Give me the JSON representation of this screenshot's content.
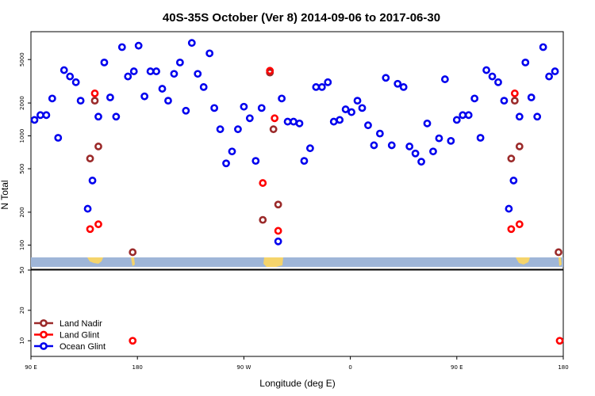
{
  "chart_data": {
    "type": "scatter",
    "title": "40S-35S October (Ver 8)   2014-09-06 to 2017-06-30",
    "xlabel": "Longitude (deg E)",
    "ylabel": "N Total",
    "x_ticks": [
      {
        "value": 90,
        "label": "90 E"
      },
      {
        "value": 180,
        "label": "180"
      },
      {
        "value": 270,
        "label": "90 W"
      },
      {
        "value": 360,
        "label": "0"
      },
      {
        "value": 450,
        "label": "90 E"
      },
      {
        "value": 540,
        "label": "180"
      }
    ],
    "xlim": [
      90,
      540
    ],
    "top_panel": {
      "scale": "log",
      "ylim": [
        60,
        9000
      ],
      "y_ticks": [
        {
          "value": 100,
          "label": "100"
        },
        {
          "value": 200,
          "label": "200"
        },
        {
          "value": 500,
          "label": "500"
        },
        {
          "value": 1000,
          "label": "1000"
        },
        {
          "value": 2000,
          "label": "2000"
        },
        {
          "value": 5000,
          "label": "5000"
        }
      ]
    },
    "bottom_panel": {
      "scale": "log",
      "ylim": [
        7,
        50
      ],
      "y_ticks": [
        {
          "value": 10,
          "label": "10"
        },
        {
          "value": 20,
          "label": "20"
        },
        {
          "value": 50,
          "label": "50"
        }
      ]
    },
    "legend_position": "bottom-left",
    "series": [
      {
        "name": "Land Nadir",
        "color": "#9b2a2a",
        "points": [
          [
            140,
            620
          ],
          [
            144,
            2100
          ],
          [
            147,
            800
          ],
          [
            176,
            86
          ],
          [
            286,
            170
          ],
          [
            292,
            3800
          ],
          [
            295,
            1150
          ],
          [
            299,
            235
          ],
          [
            496,
            620
          ],
          [
            499,
            2100
          ],
          [
            503,
            800
          ],
          [
            536,
            86
          ]
        ],
        "bottom_points": []
      },
      {
        "name": "Land Glint",
        "color": "#ff0000",
        "points": [
          [
            140,
            140
          ],
          [
            144,
            2450
          ],
          [
            147,
            155
          ],
          [
            286,
            370
          ],
          [
            292,
            3950
          ],
          [
            296,
            1450
          ],
          [
            299,
            135
          ],
          [
            496,
            140
          ],
          [
            499,
            2450
          ],
          [
            503,
            155
          ]
        ],
        "bottom_points": [
          [
            176,
            10
          ],
          [
            537,
            10
          ]
        ]
      },
      {
        "name": "Ocean Glint",
        "color": "#0000ee",
        "points": [
          [
            93,
            1400
          ],
          [
            98,
            1550
          ],
          [
            103,
            1550
          ],
          [
            108,
            2200
          ],
          [
            113,
            960
          ],
          [
            118,
            4000
          ],
          [
            123,
            3500
          ],
          [
            128,
            3100
          ],
          [
            132,
            2100
          ],
          [
            138,
            215
          ],
          [
            142,
            390
          ],
          [
            147,
            1500
          ],
          [
            152,
            4700
          ],
          [
            157,
            2250
          ],
          [
            162,
            1500
          ],
          [
            167,
            6500
          ],
          [
            172,
            3500
          ],
          [
            177,
            3900
          ],
          [
            181,
            6700
          ],
          [
            186,
            2300
          ],
          [
            191,
            3900
          ],
          [
            196,
            3900
          ],
          [
            201,
            2700
          ],
          [
            206,
            2100
          ],
          [
            211,
            3700
          ],
          [
            216,
            4700
          ],
          [
            221,
            1700
          ],
          [
            226,
            7100
          ],
          [
            231,
            3700
          ],
          [
            236,
            2800
          ],
          [
            241,
            5700
          ],
          [
            245,
            1800
          ],
          [
            250,
            1150
          ],
          [
            255,
            560
          ],
          [
            260,
            720
          ],
          [
            265,
            1150
          ],
          [
            270,
            1850
          ],
          [
            275,
            1450
          ],
          [
            280,
            590
          ],
          [
            285,
            1800
          ],
          [
            299,
            108
          ],
          [
            302,
            2200
          ],
          [
            307,
            1350
          ],
          [
            312,
            1350
          ],
          [
            317,
            1300
          ],
          [
            321,
            590
          ],
          [
            326,
            770
          ],
          [
            331,
            2800
          ],
          [
            336,
            2800
          ],
          [
            341,
            3100
          ],
          [
            346,
            1350
          ],
          [
            351,
            1400
          ],
          [
            356,
            1750
          ],
          [
            361,
            1650
          ],
          [
            366,
            2100
          ],
          [
            370,
            1800
          ],
          [
            375,
            1250
          ],
          [
            380,
            820
          ],
          [
            385,
            1050
          ],
          [
            390,
            3400
          ],
          [
            395,
            820
          ],
          [
            400,
            3000
          ],
          [
            405,
            2800
          ],
          [
            410,
            800
          ],
          [
            415,
            690
          ],
          [
            420,
            580
          ],
          [
            425,
            1300
          ],
          [
            430,
            720
          ],
          [
            435,
            950
          ],
          [
            440,
            3300
          ],
          [
            445,
            900
          ],
          [
            450,
            1400
          ],
          [
            455,
            1550
          ],
          [
            460,
            1550
          ],
          [
            465,
            2200
          ],
          [
            470,
            960
          ],
          [
            475,
            4000
          ],
          [
            480,
            3500
          ],
          [
            485,
            3100
          ],
          [
            490,
            2100
          ],
          [
            494,
            215
          ],
          [
            498,
            390
          ],
          [
            503,
            1500
          ],
          [
            508,
            4700
          ],
          [
            513,
            2250
          ],
          [
            518,
            1500
          ],
          [
            523,
            6500
          ],
          [
            528,
            3500
          ],
          [
            533,
            3900
          ]
        ],
        "bottom_points": []
      }
    ]
  }
}
